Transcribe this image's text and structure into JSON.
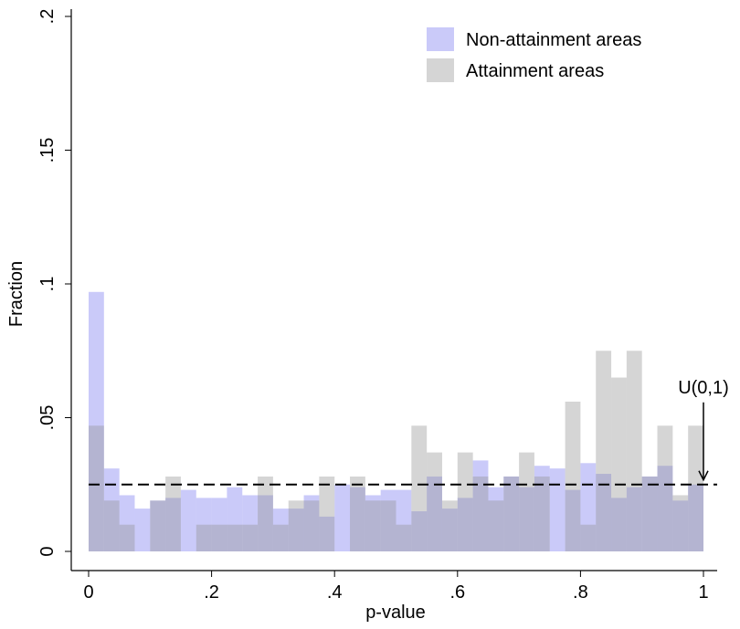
{
  "chart_data": {
    "type": "histogram",
    "xlabel": "p-value",
    "ylabel": "Fraction",
    "bins": [
      0,
      0.025,
      0.05,
      0.075,
      0.1,
      0.125,
      0.15,
      0.175,
      0.2,
      0.225,
      0.25,
      0.275,
      0.3,
      0.325,
      0.35,
      0.375,
      0.4,
      0.425,
      0.45,
      0.475,
      0.5,
      0.525,
      0.55,
      0.575,
      0.6,
      0.625,
      0.65,
      0.675,
      0.7,
      0.725,
      0.75,
      0.775,
      0.8,
      0.825,
      0.85,
      0.875,
      0.9,
      0.925,
      0.95,
      0.975,
      1
    ],
    "series": [
      {
        "name": "Non-attainment areas",
        "color": "#8080f0",
        "opacity": 0.42,
        "values": [
          0.097,
          0.031,
          0.021,
          0.016,
          0.019,
          0.02,
          0.023,
          0.02,
          0.02,
          0.024,
          0.021,
          0.021,
          0.016,
          0.016,
          0.021,
          0.013,
          0.025,
          0.024,
          0.021,
          0.023,
          0.023,
          0.015,
          0.028,
          0.016,
          0.02,
          0.034,
          0.024,
          0.028,
          0.024,
          0.032,
          0.031,
          0.023,
          0.033,
          0.029,
          0.02,
          0.024,
          0.028,
          0.032,
          0.019,
          0.025
        ]
      },
      {
        "name": "Attainment areas",
        "color": "#909090",
        "opacity": 0.38,
        "values": [
          0.047,
          0.019,
          0.01,
          0,
          0.019,
          0.028,
          0,
          0.01,
          0.01,
          0.01,
          0.01,
          0.028,
          0.01,
          0.019,
          0.019,
          0.028,
          0,
          0.028,
          0.019,
          0.019,
          0.01,
          0.047,
          0.037,
          0.019,
          0.037,
          0.028,
          0.019,
          0.028,
          0.037,
          0.028,
          0,
          0.056,
          0.01,
          0.075,
          0.065,
          0.075,
          0.028,
          0.047,
          0.021,
          0.047
        ]
      }
    ],
    "reference_line": {
      "value": 0.025,
      "label": "U(0,1)",
      "style": "dashed",
      "color": "#000000"
    },
    "xlim": [
      0,
      1
    ],
    "xticks": [
      0,
      {
        "value": 0.2,
        "label": ".2"
      },
      {
        "value": 0.4,
        "label": ".4"
      },
      {
        "value": 0.6,
        "label": ".6"
      },
      {
        "value": 0.8,
        "label": ".8"
      },
      1
    ],
    "ylim": [
      0,
      0.2
    ],
    "yticks": [
      0,
      {
        "value": 0.05,
        "label": ".05"
      },
      {
        "value": 0.1,
        "label": ".1"
      },
      {
        "value": 0.15,
        "label": ".15"
      },
      {
        "value": 0.2,
        "label": ".2"
      }
    ],
    "legend": "top-right"
  }
}
